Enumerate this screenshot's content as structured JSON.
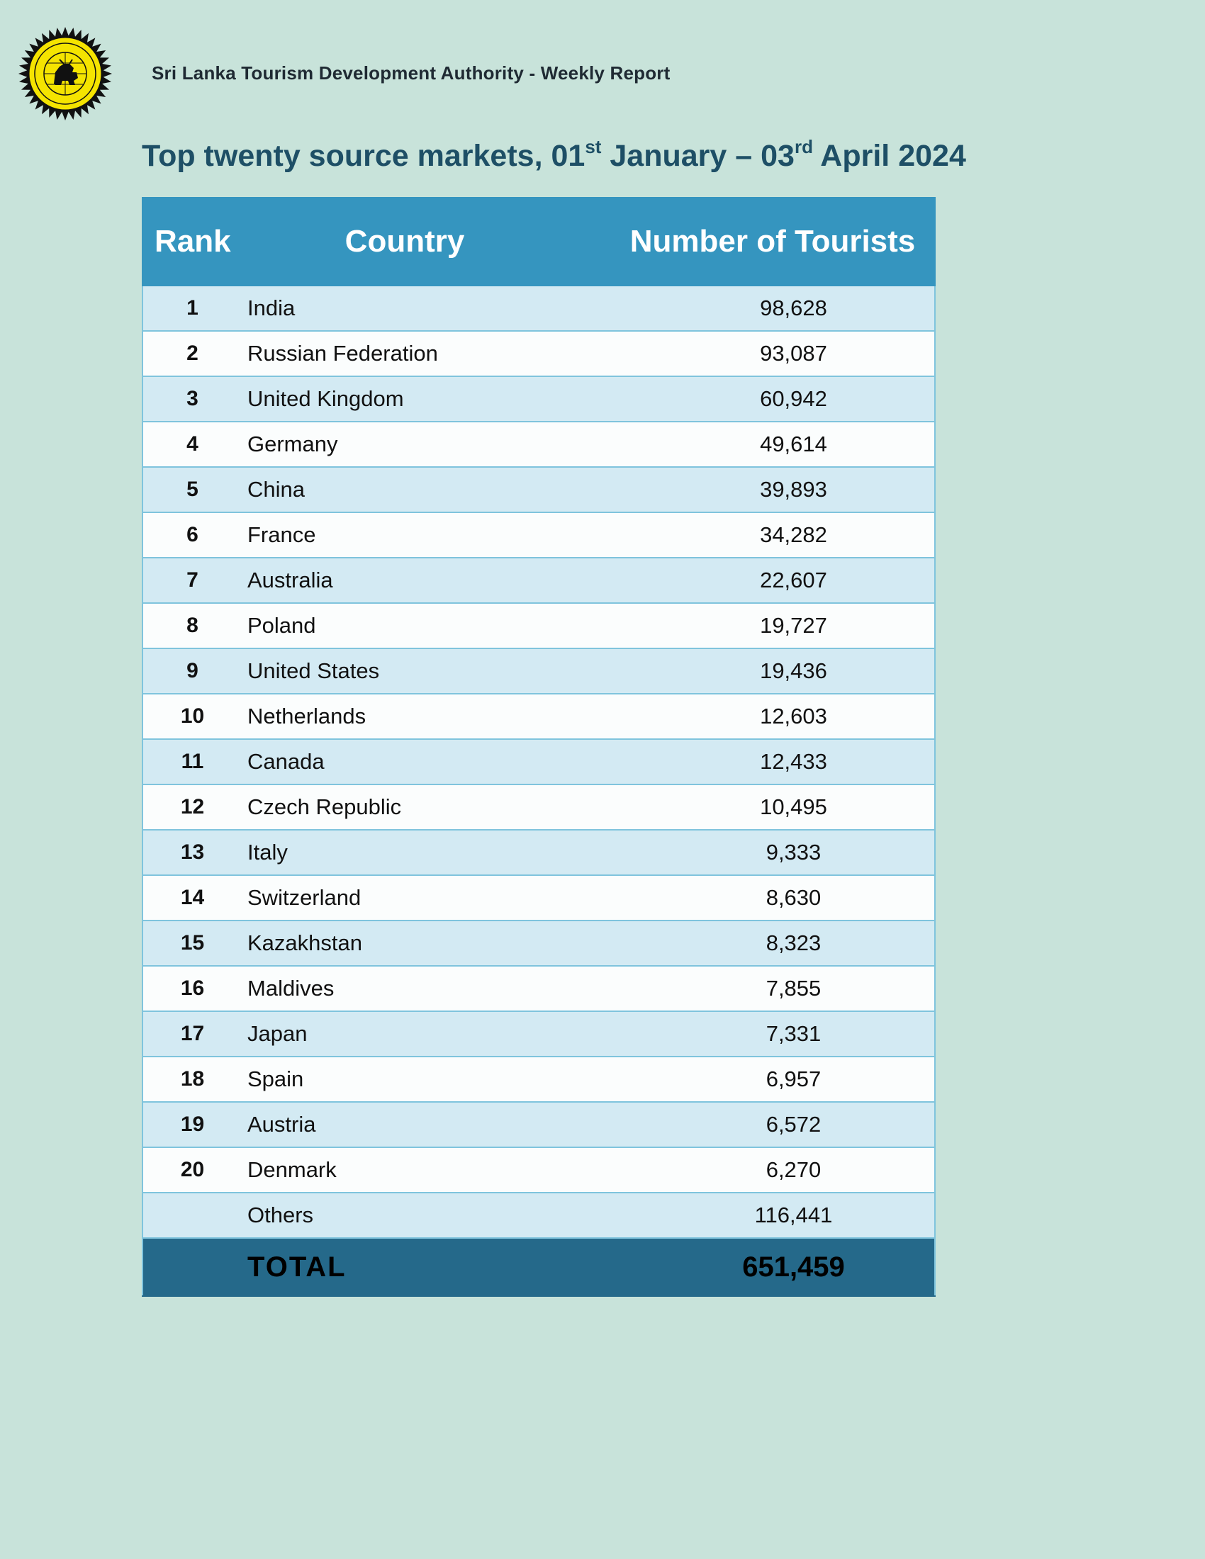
{
  "header": {
    "organization": "Sri Lanka Tourism Development Authority",
    "separator": "-",
    "report_type": "Weekly Report"
  },
  "title": {
    "prefix": "Top twenty source markets, 01",
    "sup1": "st",
    "middle": " January – 03",
    "sup2": "rd",
    "suffix": " April 2024"
  },
  "table": {
    "headers": {
      "rank": "Rank",
      "country": "Country",
      "tourists": "Number of Tourists"
    },
    "rows": [
      {
        "rank": "1",
        "country": "India",
        "tourists": "98,628"
      },
      {
        "rank": "2",
        "country": "Russian Federation",
        "tourists": "93,087"
      },
      {
        "rank": "3",
        "country": "United Kingdom",
        "tourists": "60,942"
      },
      {
        "rank": "4",
        "country": "Germany",
        "tourists": "49,614"
      },
      {
        "rank": "5",
        "country": "China",
        "tourists": "39,893"
      },
      {
        "rank": "6",
        "country": "France",
        "tourists": "34,282"
      },
      {
        "rank": "7",
        "country": "Australia",
        "tourists": "22,607"
      },
      {
        "rank": "8",
        "country": "Poland",
        "tourists": "19,727"
      },
      {
        "rank": "9",
        "country": "United States",
        "tourists": "19,436"
      },
      {
        "rank": "10",
        "country": "Netherlands",
        "tourists": "12,603"
      },
      {
        "rank": "11",
        "country": "Canada",
        "tourists": "12,433"
      },
      {
        "rank": "12",
        "country": "Czech Republic",
        "tourists": "10,495"
      },
      {
        "rank": "13",
        "country": "Italy",
        "tourists": "9,333"
      },
      {
        "rank": "14",
        "country": "Switzerland",
        "tourists": "8,630"
      },
      {
        "rank": "15",
        "country": "Kazakhstan",
        "tourists": "8,323"
      },
      {
        "rank": "16",
        "country": "Maldives",
        "tourists": "7,855"
      },
      {
        "rank": "17",
        "country": "Japan",
        "tourists": "7,331"
      },
      {
        "rank": "18",
        "country": "Spain",
        "tourists": "6,957"
      },
      {
        "rank": "19",
        "country": "Austria",
        "tourists": "6,572"
      },
      {
        "rank": "20",
        "country": "Denmark",
        "tourists": "6,270"
      }
    ],
    "others": {
      "label": "Others",
      "tourists": "116,441"
    },
    "total": {
      "label": "TOTAL",
      "tourists": "651,459"
    }
  },
  "colors": {
    "page_background": "#c8e3da",
    "header_background": "#3595bf",
    "total_background": "#25698a",
    "title_color": "#1e4f66",
    "logo_yellow": "#f5e400"
  },
  "icons": {
    "logo": "sltda-emblem-icon"
  }
}
